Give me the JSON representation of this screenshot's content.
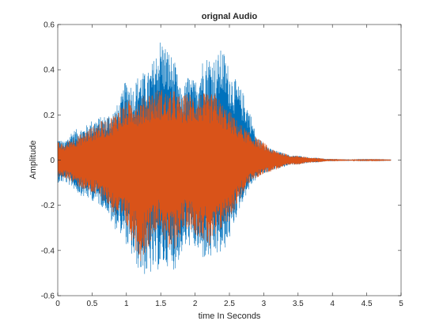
{
  "chart_data": {
    "type": "line",
    "title": "orignal Audio",
    "xlabel": "time In Seconds",
    "ylabel": "Amplitude",
    "xlim": [
      0,
      5
    ],
    "ylim": [
      -0.6,
      0.6
    ],
    "xticks": [
      0,
      0.5,
      1,
      1.5,
      2,
      2.5,
      3,
      3.5,
      4,
      4.5,
      5
    ],
    "xtick_labels": [
      "0",
      "0.5",
      "1",
      "1.5",
      "2",
      "2.5",
      "3",
      "3.5",
      "4",
      "4.5",
      "5"
    ],
    "yticks": [
      -0.6,
      -0.4,
      -0.2,
      0,
      0.2,
      0.4,
      0.6
    ],
    "ytick_labels": [
      "-0.6",
      "-0.4",
      "-0.2",
      "0",
      "0.2",
      "0.4",
      "0.6"
    ],
    "grid": false,
    "box": true,
    "series": [
      {
        "color": "#0072BD",
        "x": [
          0,
          0.1,
          0.2,
          0.3,
          0.4,
          0.5,
          0.6,
          0.7,
          0.8,
          0.9,
          1.0,
          1.1,
          1.2,
          1.3,
          1.4,
          1.5,
          1.6,
          1.7,
          1.8,
          1.9,
          2.0,
          2.1,
          2.2,
          2.3,
          2.4,
          2.5,
          2.6,
          2.7,
          2.8,
          2.9,
          3.0,
          3.1,
          3.2,
          3.3,
          3.4,
          3.5,
          3.6,
          3.7,
          3.8,
          3.9,
          4.0,
          4.2,
          4.4,
          4.6,
          4.85
        ],
        "upper": [
          0.1,
          0.08,
          0.13,
          0.14,
          0.15,
          0.18,
          0.19,
          0.2,
          0.22,
          0.26,
          0.37,
          0.33,
          0.4,
          0.38,
          0.45,
          0.55,
          0.5,
          0.44,
          0.3,
          0.38,
          0.35,
          0.45,
          0.47,
          0.46,
          0.5,
          0.41,
          0.35,
          0.3,
          0.22,
          0.1,
          0.08,
          0.05,
          0.04,
          0.03,
          0.02,
          0.02,
          0.015,
          0.01,
          0.01,
          0.005,
          0.005,
          0.003,
          0.002,
          0.002,
          0.001
        ],
        "lower": [
          -0.1,
          -0.1,
          -0.12,
          -0.15,
          -0.17,
          -0.18,
          -0.2,
          -0.22,
          -0.3,
          -0.32,
          -0.38,
          -0.45,
          -0.5,
          -0.52,
          -0.5,
          -0.48,
          -0.47,
          -0.49,
          -0.42,
          -0.38,
          -0.4,
          -0.44,
          -0.45,
          -0.43,
          -0.42,
          -0.35,
          -0.25,
          -0.18,
          -0.12,
          -0.08,
          -0.06,
          -0.05,
          -0.04,
          -0.03,
          -0.02,
          -0.02,
          -0.015,
          -0.01,
          -0.01,
          -0.005,
          -0.005,
          -0.003,
          -0.002,
          -0.002,
          -0.001
        ]
      },
      {
        "color": "#D95319",
        "x": [
          0,
          0.1,
          0.2,
          0.3,
          0.4,
          0.5,
          0.6,
          0.7,
          0.8,
          0.9,
          1.0,
          1.1,
          1.2,
          1.3,
          1.4,
          1.5,
          1.6,
          1.7,
          1.8,
          1.9,
          2.0,
          2.1,
          2.2,
          2.3,
          2.4,
          2.5,
          2.6,
          2.7,
          2.8,
          2.9,
          3.0,
          3.1,
          3.2,
          3.3,
          3.4,
          3.5,
          3.6,
          3.7,
          3.8,
          3.9,
          4.0,
          4.2,
          4.4,
          4.6,
          4.85
        ],
        "upper": [
          0.08,
          0.07,
          0.1,
          0.11,
          0.13,
          0.15,
          0.17,
          0.18,
          0.2,
          0.24,
          0.26,
          0.28,
          0.27,
          0.3,
          0.31,
          0.32,
          0.3,
          0.31,
          0.28,
          0.3,
          0.29,
          0.3,
          0.29,
          0.3,
          0.25,
          0.22,
          0.18,
          0.15,
          0.12,
          0.1,
          0.08,
          0.05,
          0.04,
          0.03,
          0.02,
          0.02,
          0.015,
          0.01,
          0.01,
          0.005,
          0.005,
          0.003,
          0.002,
          0.002,
          0.001
        ],
        "lower": [
          -0.08,
          -0.08,
          -0.1,
          -0.12,
          -0.14,
          -0.15,
          -0.17,
          -0.19,
          -0.24,
          -0.28,
          -0.3,
          -0.38,
          -0.45,
          -0.4,
          -0.32,
          -0.3,
          -0.42,
          -0.4,
          -0.33,
          -0.3,
          -0.33,
          -0.35,
          -0.4,
          -0.36,
          -0.3,
          -0.27,
          -0.2,
          -0.15,
          -0.1,
          -0.08,
          -0.06,
          -0.05,
          -0.04,
          -0.03,
          -0.02,
          -0.02,
          -0.015,
          -0.01,
          -0.01,
          -0.005,
          -0.005,
          -0.003,
          -0.002,
          -0.002,
          -0.001
        ]
      }
    ]
  }
}
